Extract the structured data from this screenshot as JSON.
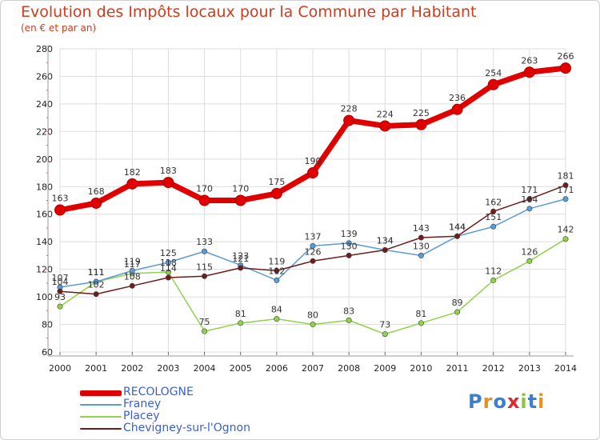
{
  "chart_data": {
    "type": "line",
    "title": "Evolution des Impôts locaux pour la Commune par Habitant",
    "subtitle": "(en € et par an)",
    "x": [
      "2000",
      "2001",
      "2002",
      "2003",
      "2004",
      "2005",
      "2006",
      "2007",
      "2008",
      "2009",
      "2010",
      "2011",
      "2012",
      "2013",
      "2014"
    ],
    "ylim": [
      60,
      280
    ],
    "yticks": [
      60,
      80,
      100,
      120,
      140,
      160,
      180,
      200,
      220,
      240,
      260,
      280
    ],
    "grid": true,
    "legend_position": "bottom-left",
    "series": [
      {
        "name": "RECOLOGNE",
        "color": "#e00000",
        "values": [
          163,
          168,
          182,
          183,
          170,
          170,
          175,
          190,
          228,
          224,
          225,
          236,
          254,
          263,
          266
        ]
      },
      {
        "name": "Franey",
        "color": "#5b9bd5",
        "values": [
          107,
          111,
          119,
          125,
          133,
          123,
          112,
          137,
          139,
          134,
          130,
          144,
          151,
          164,
          171
        ]
      },
      {
        "name": "Placey",
        "color": "#8ed34a",
        "values": [
          93,
          111,
          117,
          118,
          75,
          81,
          84,
          80,
          83,
          73,
          81,
          89,
          112,
          126,
          142
        ]
      },
      {
        "name": "Chevigney-sur-l'Ognon",
        "color": "#6e1c1c",
        "values": [
          104,
          102,
          108,
          114,
          115,
          121,
          119,
          126,
          130,
          134,
          143,
          144,
          162,
          171,
          181
        ]
      }
    ]
  },
  "logo": {
    "letters": [
      "P",
      "r",
      "o",
      "x",
      "i",
      "t",
      "i"
    ],
    "colors": [
      "#3a7fd0",
      "#e3931c",
      "#3a7fd0",
      "#e0282c",
      "#8cc63f",
      "#3a7fd0",
      "#e3931c"
    ]
  }
}
